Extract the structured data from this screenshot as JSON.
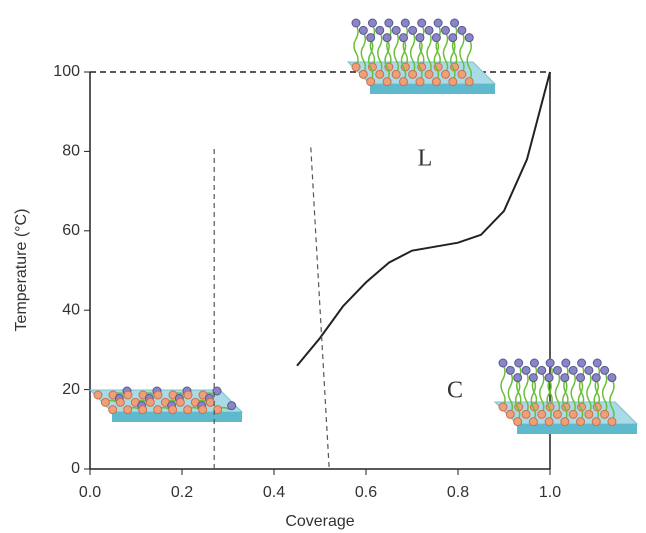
{
  "chart_data": {
    "type": "line",
    "xlabel": "Coverage",
    "ylabel": "Temperature (°C)",
    "xlim": [
      0,
      1
    ],
    "ylim": [
      0,
      100
    ],
    "xticks": [
      {
        "value": 0,
        "label": "0.0"
      },
      0.2,
      0.4,
      0.6,
      0.8,
      {
        "value": 1,
        "label": "1.0"
      }
    ],
    "yticks": [
      0,
      20,
      40,
      60,
      80,
      100
    ],
    "annotations": [
      "L",
      "C"
    ],
    "series": [
      {
        "color": "#222222",
        "style": "solid",
        "x": [
          0.45,
          0.5,
          0.55,
          0.6,
          0.65,
          0.7,
          0.75,
          0.8,
          0.85,
          0.9,
          0.95,
          1.0
        ],
        "values": [
          26,
          33,
          41,
          47,
          52,
          55,
          56,
          57,
          59,
          65,
          78,
          100
        ]
      },
      {
        "color": "#555555",
        "style": "dashed",
        "x": [
          0.27,
          0.27
        ],
        "values": [
          0,
          81
        ]
      },
      {
        "color": "#555555",
        "style": "dashed",
        "x": [
          0.48,
          0.52
        ],
        "values": [
          81,
          0
        ]
      }
    ]
  }
}
